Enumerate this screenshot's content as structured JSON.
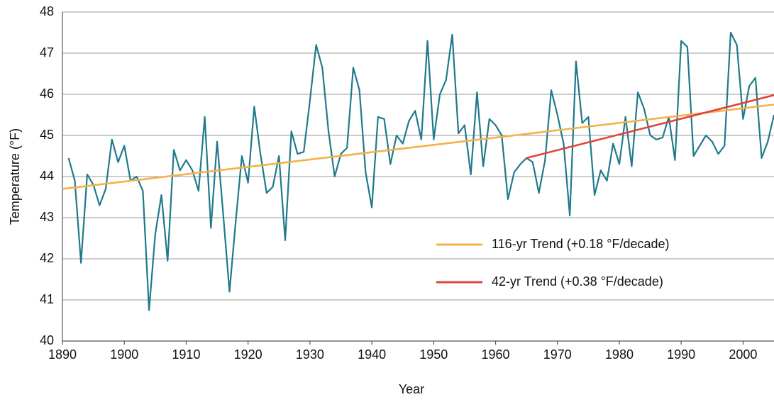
{
  "chart_data": {
    "type": "line",
    "xlabel": "Year",
    "ylabel": "Temperature (°F)",
    "xlim": [
      1890,
      2005
    ],
    "ylim": [
      40,
      48
    ],
    "xticks": [
      1890,
      1900,
      1910,
      1920,
      1930,
      1940,
      1950,
      1960,
      1970,
      1980,
      1990,
      2000
    ],
    "yticks": [
      40,
      41,
      42,
      43,
      44,
      45,
      46,
      47,
      48
    ],
    "grid": true,
    "legend": "lower right",
    "series": [
      {
        "color": "#1f7a8c",
        "x": [
          1891,
          1892,
          1893,
          1894,
          1895,
          1896,
          1897,
          1898,
          1899,
          1900,
          1901,
          1902,
          1903,
          1904,
          1905,
          1906,
          1907,
          1908,
          1909,
          1910,
          1911,
          1912,
          1913,
          1914,
          1915,
          1916,
          1917,
          1918,
          1919,
          1920,
          1921,
          1922,
          1923,
          1924,
          1925,
          1926,
          1927,
          1928,
          1929,
          1930,
          1931,
          1932,
          1933,
          1934,
          1935,
          1936,
          1937,
          1938,
          1939,
          1940,
          1941,
          1942,
          1943,
          1944,
          1945,
          1946,
          1947,
          1948,
          1949,
          1950,
          1951,
          1952,
          1953,
          1954,
          1955,
          1956,
          1957,
          1958,
          1959,
          1960,
          1961,
          1962,
          1963,
          1964,
          1965,
          1966,
          1967,
          1968,
          1969,
          1970,
          1971,
          1972,
          1973,
          1974,
          1975,
          1976,
          1977,
          1978,
          1979,
          1980,
          1981,
          1982,
          1983,
          1984,
          1985,
          1986,
          1987,
          1988,
          1989,
          1990,
          1991,
          1992,
          1993,
          1994,
          1995,
          1996,
          1997,
          1998,
          1999,
          2000,
          2001,
          2002,
          2003,
          2004,
          2005
        ],
        "values": [
          44.45,
          43.9,
          41.9,
          44.05,
          43.8,
          43.3,
          43.7,
          44.9,
          44.35,
          44.75,
          43.9,
          44.0,
          43.65,
          40.75,
          42.6,
          43.55,
          41.95,
          44.65,
          44.15,
          44.4,
          44.15,
          43.65,
          45.45,
          42.75,
          44.85,
          43.05,
          41.2,
          42.9,
          44.5,
          43.85,
          45.7,
          44.55,
          43.6,
          43.75,
          44.5,
          42.45,
          45.1,
          44.55,
          44.6,
          45.85,
          47.2,
          46.65,
          45.1,
          44.0,
          44.55,
          44.7,
          46.65,
          46.1,
          44.1,
          43.25,
          45.45,
          45.4,
          44.3,
          45.0,
          44.8,
          45.35,
          45.6,
          44.9,
          47.3,
          44.9,
          46.0,
          46.35,
          47.45,
          45.05,
          45.25,
          44.05,
          46.05,
          44.25,
          45.4,
          45.25,
          45.0,
          43.45,
          44.1,
          44.3,
          44.45,
          44.35,
          43.6,
          44.4,
          46.1,
          45.5,
          44.8,
          43.05,
          46.8,
          45.3,
          45.45,
          43.55,
          44.15,
          43.9,
          44.8,
          44.3,
          45.45,
          44.25,
          46.05,
          45.65,
          45.0,
          44.9,
          44.95,
          45.45,
          44.4,
          47.3,
          47.15,
          44.5,
          44.75,
          45.0,
          44.85,
          44.55,
          44.75,
          47.5,
          47.2,
          45.4,
          46.2,
          46.4,
          44.45,
          44.85,
          45.5
        ]
      },
      {
        "name": "116-yr Trend (+0.18 °F/decade)",
        "color": "#f5b04a",
        "x": [
          1890,
          2005
        ],
        "values": [
          43.7,
          45.75
        ]
      },
      {
        "name": "42-yr Trend (+0.38 °F/decade)",
        "color": "#e0443a",
        "x": [
          1965,
          2005
        ],
        "values": [
          44.45,
          45.98
        ]
      }
    ]
  }
}
